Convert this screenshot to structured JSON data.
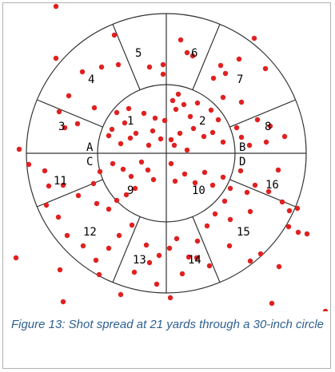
{
  "figure": {
    "caption": "Figure 13: Shot spread at 21 yards through a 30-inch circle",
    "pellet_color": "#e02020",
    "line_color": "#333333"
  },
  "zones": [
    {
      "id": "1",
      "label": "1"
    },
    {
      "id": "2",
      "label": "2"
    },
    {
      "id": "3",
      "label": "3"
    },
    {
      "id": "4",
      "label": "4"
    },
    {
      "id": "5",
      "label": "5"
    },
    {
      "id": "6",
      "label": "6"
    },
    {
      "id": "7",
      "label": "7"
    },
    {
      "id": "8",
      "label": "8"
    },
    {
      "id": "9",
      "label": "9"
    },
    {
      "id": "10",
      "label": "10"
    },
    {
      "id": "11",
      "label": "11"
    },
    {
      "id": "12",
      "label": "12"
    },
    {
      "id": "13",
      "label": "13"
    },
    {
      "id": "14",
      "label": "14"
    },
    {
      "id": "15",
      "label": "15"
    },
    {
      "id": "16",
      "label": "16"
    }
  ],
  "quadrants": [
    {
      "id": "A",
      "label": "A"
    },
    {
      "id": "B",
      "label": "B"
    },
    {
      "id": "C",
      "label": "C"
    },
    {
      "id": "D",
      "label": "D"
    }
  ]
}
